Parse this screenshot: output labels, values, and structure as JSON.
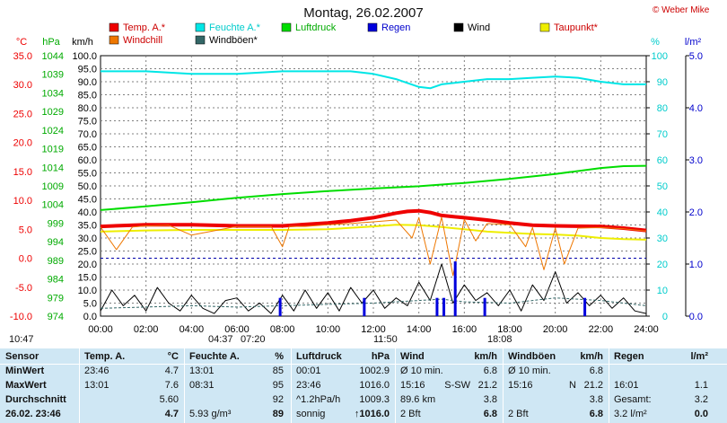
{
  "title": "Montag, 26.02.2007",
  "credit": "© Weber Mike",
  "colors": {
    "temp": "#ee0000",
    "humidity": "#00e6e6",
    "pressure": "#00dd00",
    "rain": "#0000dd",
    "wind": "#000000",
    "dewpoint": "#eeee00",
    "windchill": "#ee7700",
    "gust": "#336666",
    "grid": "#808080",
    "baseline": "#0000aa"
  },
  "axis_headers": {
    "temp": "°C",
    "pressure": "hPa",
    "wind": "km/h",
    "humidity": "%",
    "rain": "l/m²"
  },
  "events": [
    {
      "label": "10:47"
    },
    {
      "label": "04:37"
    },
    {
      "label": "07:20"
    },
    {
      "label": "11:50"
    },
    {
      "label": "18:08"
    }
  ],
  "chart_data": {
    "type": "line",
    "title": "Montag, 26.02.2007",
    "x_ticks": [
      "00:00",
      "02:00",
      "04:00",
      "06:00",
      "08:00",
      "10:00",
      "12:00",
      "14:00",
      "16:00",
      "18:00",
      "20:00",
      "22:00",
      "24:00"
    ],
    "xlim_hours": [
      0,
      24
    ],
    "grid": true,
    "legend_position": "top",
    "axes": {
      "temp": {
        "label": "°C",
        "ylim": [
          -10,
          35
        ],
        "ticks": [
          "35.0",
          "30.0",
          "25.0",
          "20.0",
          "15.0",
          "10.0",
          "5.0",
          "0.0",
          "-5.0",
          "-10.0"
        ]
      },
      "pressure": {
        "label": "hPa",
        "ylim": [
          974,
          1044
        ],
        "ticks": [
          "1044",
          "1039",
          "1034",
          "1029",
          "1024",
          "1019",
          "1014",
          "1009",
          "1004",
          "999",
          "994",
          "989",
          "984",
          "979",
          "974"
        ]
      },
      "wind": {
        "label": "km/h",
        "ylim": [
          0,
          100
        ],
        "ticks": [
          "100.0",
          "95.0",
          "90.0",
          "85.0",
          "80.0",
          "75.0",
          "70.0",
          "65.0",
          "60.0",
          "55.0",
          "50.0",
          "45.0",
          "40.0",
          "35.0",
          "30.0",
          "25.0",
          "20.0",
          "15.0",
          "10.0",
          "5.0",
          "0.0"
        ]
      },
      "humidity": {
        "label": "%",
        "ylim": [
          0,
          100
        ],
        "ticks": [
          "100",
          "90",
          "80",
          "70",
          "60",
          "50",
          "40",
          "30",
          "20",
          "10",
          "0"
        ]
      },
      "rain": {
        "label": "l/m²",
        "ylim": [
          0,
          5
        ],
        "ticks": [
          "5.0",
          "4.0",
          "3.0",
          "2.0",
          "1.0",
          "0.0"
        ]
      }
    },
    "legend": [
      {
        "key": "temp",
        "label": "Temp. A.*"
      },
      {
        "key": "humidity",
        "label": "Feuchte A.*"
      },
      {
        "key": "pressure",
        "label": "Luftdruck"
      },
      {
        "key": "rain",
        "label": "Regen"
      },
      {
        "key": "wind",
        "label": "Wind"
      },
      {
        "key": "dewpoint",
        "label": "Taupunkt*"
      },
      {
        "key": "windchill",
        "label": "Windchill"
      },
      {
        "key": "gust",
        "label": "Windböen*"
      }
    ],
    "series": [
      {
        "name": "Temp. A.*",
        "key": "temp",
        "axis": "temp",
        "x": [
          0,
          2,
          4,
          6,
          8,
          10,
          11,
          12,
          13,
          13.5,
          14,
          14.5,
          15,
          16,
          17,
          18,
          19,
          20,
          22,
          23,
          24
        ],
        "y": [
          5.5,
          5.8,
          5.8,
          5.6,
          5.6,
          6.1,
          6.5,
          7.0,
          7.8,
          8.1,
          8.2,
          7.9,
          7.4,
          7.0,
          6.6,
          6.1,
          5.7,
          5.6,
          5.5,
          5.2,
          4.8
        ]
      },
      {
        "name": "Feuchte A.*",
        "key": "humidity",
        "axis": "humidity",
        "x": [
          0,
          2,
          4,
          6,
          8,
          10,
          11,
          12,
          13,
          14,
          14.5,
          15,
          16,
          17,
          18,
          19,
          20,
          21,
          22,
          23,
          24
        ],
        "y": [
          94,
          94,
          93,
          93,
          94,
          94,
          94,
          93,
          91,
          88,
          87.5,
          89,
          90,
          91,
          91,
          91.5,
          92,
          91.5,
          90,
          89,
          89
        ]
      },
      {
        "name": "Luftdruck",
        "key": "pressure",
        "axis": "pressure",
        "x": [
          0,
          2,
          4,
          6,
          8,
          10,
          12,
          14,
          16,
          18,
          20,
          22,
          23,
          24
        ],
        "y": [
          1002.5,
          1003.5,
          1004.6,
          1005.8,
          1006.8,
          1007.6,
          1008.3,
          1008.9,
          1009.8,
          1010.9,
          1012.2,
          1013.8,
          1014.3,
          1014.4
        ]
      },
      {
        "name": "Taupunkt*",
        "key": "dewpoint",
        "axis": "temp",
        "x": [
          0,
          2,
          4,
          6,
          8,
          10,
          12,
          13,
          14,
          15,
          16,
          17,
          18,
          19,
          20,
          21,
          22,
          23,
          24
        ],
        "y": [
          4.6,
          4.8,
          4.9,
          4.9,
          4.9,
          5.0,
          5.5,
          5.8,
          5.7,
          5.4,
          5.0,
          4.6,
          4.4,
          4.2,
          4.1,
          3.9,
          3.5,
          3.3,
          3.2
        ]
      },
      {
        "name": "Windchill",
        "key": "windchill",
        "axis": "temp",
        "x": [
          0,
          0.7,
          1.4,
          2,
          3,
          4,
          6,
          7.5,
          8,
          8.3,
          9,
          10,
          11,
          12,
          13,
          13.7,
          14,
          14.5,
          15,
          15.5,
          16,
          16.5,
          17,
          18,
          18.7,
          19,
          19.5,
          20,
          20.4,
          21,
          22,
          23,
          24
        ],
        "y": [
          5.4,
          1.5,
          5.4,
          5.6,
          5.7,
          4.0,
          5.5,
          5.5,
          2.0,
          5.5,
          5.5,
          5.8,
          6.0,
          6.3,
          6.6,
          3.5,
          7.0,
          -1.0,
          7.1,
          -3.0,
          6.7,
          3.0,
          6.0,
          5.8,
          2.0,
          5.3,
          -2.0,
          5.2,
          -1.0,
          5.2,
          5.3,
          5.1,
          4.7
        ]
      },
      {
        "name": "Wind",
        "key": "wind",
        "axis": "wind",
        "x": [
          0,
          0.5,
          1,
          1.5,
          2,
          2.5,
          3,
          3.5,
          4,
          4.5,
          5,
          5.5,
          6,
          6.5,
          7,
          7.5,
          8,
          8.5,
          9,
          9.5,
          10,
          10.5,
          11,
          11.5,
          12,
          12.5,
          13,
          13.5,
          14,
          14.5,
          15,
          15.5,
          16,
          16.5,
          17,
          17.5,
          18,
          18.5,
          19,
          19.5,
          20,
          20.5,
          21,
          21.5,
          22,
          22.5,
          23,
          23.5,
          24
        ],
        "y": [
          2,
          10,
          4,
          8,
          2,
          11,
          5,
          2,
          8,
          3,
          1,
          6,
          7,
          2,
          5,
          1,
          8,
          2,
          10,
          3,
          9,
          2,
          11,
          5,
          10,
          3,
          7,
          4,
          13,
          6,
          20,
          5,
          12,
          6,
          9,
          4,
          10,
          2,
          12,
          6,
          17,
          5,
          9,
          4,
          8,
          3,
          7,
          2,
          1
        ]
      },
      {
        "name": "Windböen*",
        "key": "gust",
        "axis": "wind",
        "x": [
          0,
          2,
          4,
          6,
          8,
          10,
          12,
          14,
          15,
          16,
          18,
          19,
          20,
          22,
          23,
          24
        ],
        "y": [
          3,
          3.5,
          4,
          3.5,
          4,
          4.5,
          5,
          6,
          6.5,
          5.5,
          5,
          6,
          7,
          6,
          5,
          4
        ]
      },
      {
        "name": "Regen",
        "key": "rain",
        "axis": "rain",
        "type": "bar",
        "x": [
          7.9,
          11.6,
          14.8,
          15.1,
          15.6,
          16.9,
          21.3
        ],
        "y": [
          0.35,
          0.35,
          0.35,
          0.35,
          1.05,
          0.35,
          0.35
        ]
      }
    ]
  },
  "table": {
    "headers": [
      {
        "name": "Sensor",
        "unit": ""
      },
      {
        "name": "Temp. A.",
        "unit": "°C"
      },
      {
        "name": "Feuchte A.",
        "unit": "%"
      },
      {
        "name": "Luftdruck",
        "unit": "hPa"
      },
      {
        "name": "Wind",
        "unit": "km/h"
      },
      {
        "name": "Windböen",
        "unit": "km/h"
      },
      {
        "name": "Regen",
        "unit": "l/m²"
      }
    ],
    "row_labels": [
      "MinWert",
      "MaxWert",
      "Durchschnitt",
      "26.02.  23:46"
    ],
    "rows": [
      {
        "temp": [
          "23:46",
          "4.7"
        ],
        "hum": [
          "13:01",
          "85"
        ],
        "press": [
          "00:01",
          "1002.9"
        ],
        "wind": [
          "Ø 10 min.",
          "",
          "6.8"
        ],
        "gust": [
          "Ø 10 min.",
          "",
          "6.8"
        ],
        "rain": [
          "",
          ""
        ]
      },
      {
        "temp": [
          "13:01",
          "7.6"
        ],
        "hum": [
          "08:31",
          "95"
        ],
        "press": [
          "23:46",
          "1016.0"
        ],
        "wind": [
          "15:16",
          "S-SW",
          "21.2"
        ],
        "gust": [
          "15:16",
          "N",
          "21.2"
        ],
        "rain": [
          "16:01",
          "1.1"
        ]
      },
      {
        "temp": [
          "",
          "5.60"
        ],
        "hum": [
          "",
          "92"
        ],
        "press": [
          "^1.2hPa/h",
          "1009.3"
        ],
        "wind": [
          "89.6 km",
          "",
          "3.8"
        ],
        "gust": [
          "",
          "",
          "3.8"
        ],
        "rain": [
          "Gesamt:",
          "3.2"
        ]
      },
      {
        "temp": [
          "",
          "4.7"
        ],
        "hum": [
          "5.93 g/m³",
          "89"
        ],
        "press": [
          "sonnig",
          "↑1016.0"
        ],
        "wind": [
          "2 Bft",
          "",
          "6.8"
        ],
        "gust": [
          "2 Bft",
          "",
          "6.8"
        ],
        "rain": [
          "3.2 l/m²",
          "0.0"
        ]
      }
    ]
  }
}
